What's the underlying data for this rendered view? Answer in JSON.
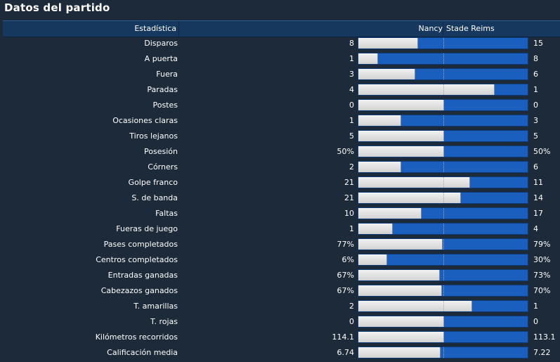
{
  "page_title": "Datos del partido",
  "header": {
    "stat_col": "Estadística",
    "home_team": "Nancy",
    "away_team": "Stade Reims"
  },
  "colors": {
    "home_bar": "#e6e6e6",
    "away_bar": "#1a5fbe",
    "background": "#1d2a3a",
    "header_bg": "#17385e"
  },
  "stats": [
    {
      "label": "Disparos",
      "home": "8",
      "away": "15",
      "home_share": 0.348
    },
    {
      "label": "A puerta",
      "home": "1",
      "away": "8",
      "home_share": 0.111
    },
    {
      "label": "Fuera",
      "home": "3",
      "away": "6",
      "home_share": 0.333
    },
    {
      "label": "Paradas",
      "home": "4",
      "away": "1",
      "home_share": 0.8
    },
    {
      "label": "Postes",
      "home": "0",
      "away": "0",
      "home_share": 0.5
    },
    {
      "label": "Ocasiones claras",
      "home": "1",
      "away": "3",
      "home_share": 0.25
    },
    {
      "label": "Tiros lejanos",
      "home": "5",
      "away": "5",
      "home_share": 0.5
    },
    {
      "label": "Posesión",
      "home": "50%",
      "away": "50%",
      "home_share": 0.5
    },
    {
      "label": "Córners",
      "home": "2",
      "away": "6",
      "home_share": 0.25
    },
    {
      "label": "Golpe franco",
      "home": "21",
      "away": "11",
      "home_share": 0.656
    },
    {
      "label": "S. de banda",
      "home": "21",
      "away": "14",
      "home_share": 0.6
    },
    {
      "label": "Faltas",
      "home": "10",
      "away": "17",
      "home_share": 0.37
    },
    {
      "label": "Fueras de juego",
      "home": "1",
      "away": "4",
      "home_share": 0.2
    },
    {
      "label": "Pases completados",
      "home": "77%",
      "away": "79%",
      "home_share": 0.494
    },
    {
      "label": "Centros completados",
      "home": "6%",
      "away": "30%",
      "home_share": 0.167
    },
    {
      "label": "Entradas ganadas",
      "home": "67%",
      "away": "73%",
      "home_share": 0.479
    },
    {
      "label": "Cabezazos ganados",
      "home": "67%",
      "away": "70%",
      "home_share": 0.489
    },
    {
      "label": "T. amarillas",
      "home": "2",
      "away": "1",
      "home_share": 0.667
    },
    {
      "label": "T. rojas",
      "home": "0",
      "away": "0",
      "home_share": 0.5
    },
    {
      "label": "Kilómetros recorridos",
      "home": "114.1",
      "away": "113.1",
      "home_share": 0.502
    },
    {
      "label": "Calificación media",
      "home": "6.74",
      "away": "7.22",
      "home_share": 0.483
    }
  ]
}
